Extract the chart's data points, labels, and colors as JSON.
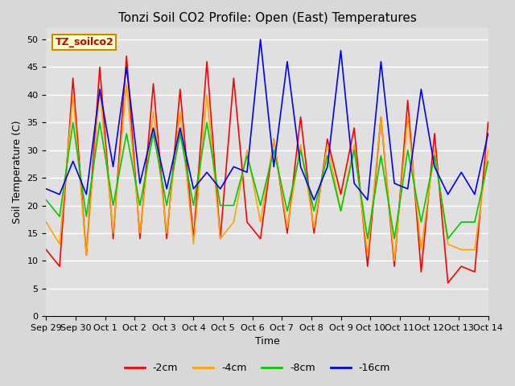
{
  "title": "Tonzi Soil CO2 Profile: Open (East) Temperatures",
  "xlabel": "Time",
  "ylabel": "Soil Temperature (C)",
  "legend_label": "TZ_soilco2",
  "ylim": [
    0,
    52
  ],
  "yticks": [
    0,
    5,
    10,
    15,
    20,
    25,
    30,
    35,
    40,
    45,
    50
  ],
  "series": {
    "-2cm": {
      "color": "#ff0000",
      "data": [
        12,
        9,
        43,
        11,
        45,
        14,
        47,
        14,
        42,
        14,
        41,
        14,
        46,
        14,
        43,
        17,
        14,
        32,
        15,
        36,
        15,
        32,
        22,
        34,
        9,
        36,
        9,
        39,
        8,
        33,
        6,
        9,
        8,
        35
      ]
    },
    "-4cm": {
      "color": "#ffa500",
      "data": [
        17,
        13,
        40,
        11,
        41,
        15,
        42,
        15,
        37,
        15,
        37,
        13,
        40,
        14,
        17,
        30,
        17,
        32,
        16,
        31,
        16,
        31,
        19,
        31,
        11,
        36,
        10,
        36,
        12,
        30,
        13,
        12,
        12,
        30
      ]
    },
    "-8cm": {
      "color": "#00cc00",
      "data": [
        21,
        18,
        35,
        18,
        35,
        20,
        33,
        20,
        33,
        20,
        33,
        20,
        35,
        20,
        20,
        29,
        20,
        30,
        19,
        30,
        19,
        29,
        19,
        30,
        14,
        29,
        14,
        30,
        17,
        29,
        14,
        17,
        17,
        28
      ]
    },
    "-16cm": {
      "color": "#0000ff",
      "data": [
        23,
        22,
        28,
        22,
        41,
        27,
        45,
        24,
        34,
        23,
        34,
        23,
        26,
        23,
        27,
        26,
        50,
        27,
        46,
        27,
        21,
        27,
        48,
        24,
        21,
        46,
        24,
        23,
        41,
        27,
        22,
        26,
        22,
        33
      ]
    }
  },
  "xtick_labels": [
    "Sep 29",
    "Sep 30",
    "Oct 1",
    "Oct 2",
    "Oct 3",
    "Oct 4",
    "Oct 5",
    "Oct 6",
    "Oct 7",
    "Oct 8",
    "Oct 9",
    "Oct 10",
    "Oct 11",
    "Oct 12",
    "Oct 13",
    "Oct 14"
  ],
  "n_ticks": 16,
  "background_color": "#e0e0e0",
  "fig_background": "#d8d8d8",
  "grid_color": "#ffffff",
  "title_fontsize": 11,
  "axis_fontsize": 9,
  "tick_fontsize": 8
}
